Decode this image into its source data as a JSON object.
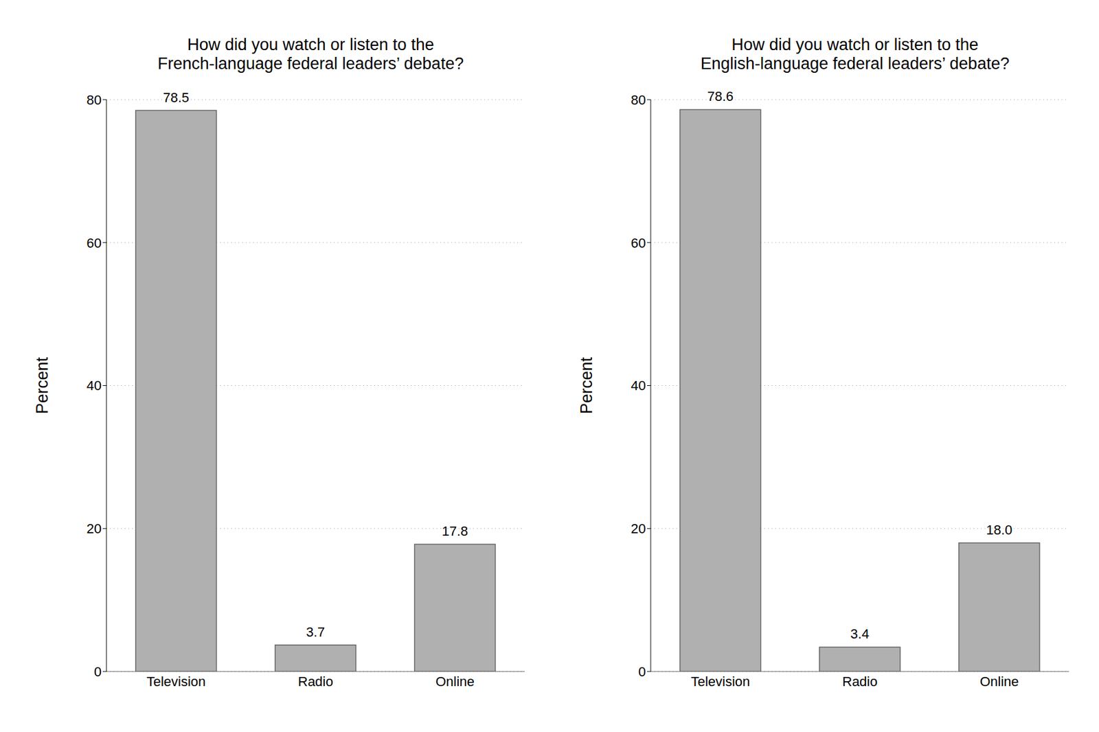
{
  "chart_data": [
    {
      "type": "bar",
      "title": "How did you watch or listen to the\nFrench-language federal leaders’ debate?",
      "ylabel": "Percent",
      "categories": [
        "Television",
        "Radio",
        "Online"
      ],
      "values": [
        78.5,
        3.7,
        17.8
      ],
      "color": "#b0b0b0",
      "ylim": [
        0,
        80
      ],
      "yticks": [
        0,
        20,
        40,
        60,
        80
      ],
      "grid": true,
      "data_labels": true
    },
    {
      "type": "bar",
      "title": "How did you watch or listen to the\nEnglish-language federal leaders’ debate?",
      "ylabel": "Percent",
      "categories": [
        "Television",
        "Radio",
        "Online"
      ],
      "values": [
        78.6,
        3.4,
        18.0
      ],
      "value_labels": [
        "78.6",
        "3.4",
        "18.0"
      ],
      "color": "#b0b0b0",
      "ylim": [
        0,
        80
      ],
      "yticks": [
        0,
        20,
        40,
        60,
        80
      ],
      "grid": true,
      "data_labels": true
    }
  ]
}
